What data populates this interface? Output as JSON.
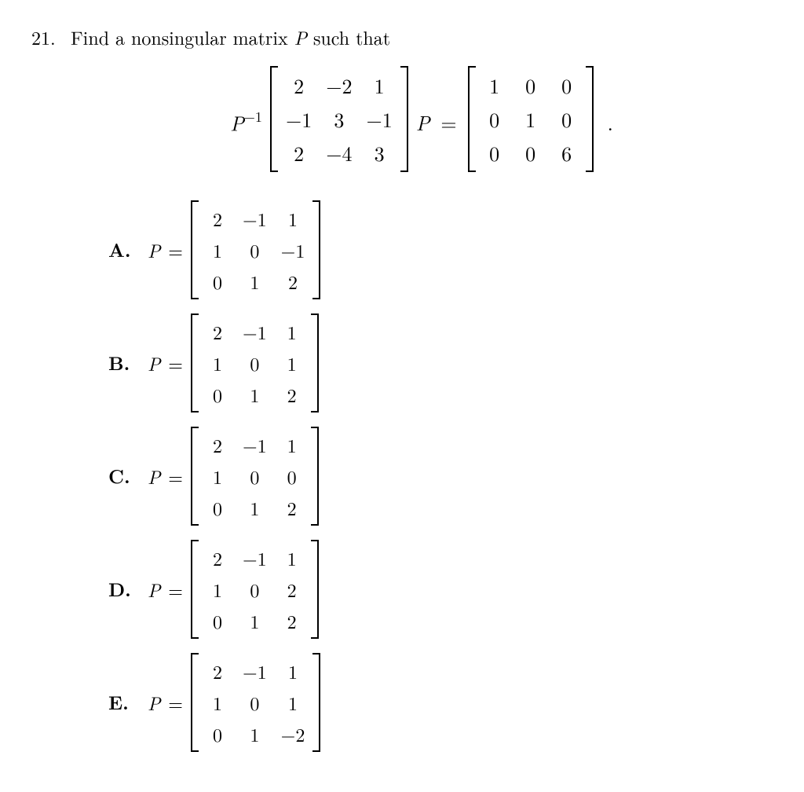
{
  "problem_number": "21.",
  "stem_pre": "Find a nonsingular matrix ",
  "stem_var": "P",
  "stem_post": " such that",
  "equation": {
    "Pinv_label_P": "P",
    "Pinv_exp": "−1",
    "A": [
      [
        "2",
        "−2",
        "1"
      ],
      [
        "−1",
        "3",
        "−1"
      ],
      [
        "2",
        "−4",
        "3"
      ]
    ],
    "P_label": "P",
    "eq": "=",
    "D": [
      [
        "1",
        "0",
        "0"
      ],
      [
        "0",
        "1",
        "0"
      ],
      [
        "0",
        "0",
        "6"
      ]
    ],
    "period": "."
  },
  "choices": [
    {
      "label": "A.",
      "M": [
        [
          "2",
          "−1",
          "1"
        ],
        [
          "1",
          "0",
          "−1"
        ],
        [
          "0",
          "1",
          "2"
        ]
      ]
    },
    {
      "label": "B.",
      "M": [
        [
          "2",
          "−1",
          "1"
        ],
        [
          "1",
          "0",
          "1"
        ],
        [
          "0",
          "1",
          "2"
        ]
      ]
    },
    {
      "label": "C.",
      "M": [
        [
          "2",
          "−1",
          "1"
        ],
        [
          "1",
          "0",
          "0"
        ],
        [
          "0",
          "1",
          "2"
        ]
      ]
    },
    {
      "label": "D.",
      "M": [
        [
          "2",
          "−1",
          "1"
        ],
        [
          "1",
          "0",
          "2"
        ],
        [
          "0",
          "1",
          "2"
        ]
      ]
    },
    {
      "label": "E.",
      "M": [
        [
          "2",
          "−1",
          "1"
        ],
        [
          "1",
          "0",
          "1"
        ],
        [
          "0",
          "1",
          "−2"
        ]
      ]
    }
  ],
  "peq_var": "P",
  "peq_eq": "="
}
